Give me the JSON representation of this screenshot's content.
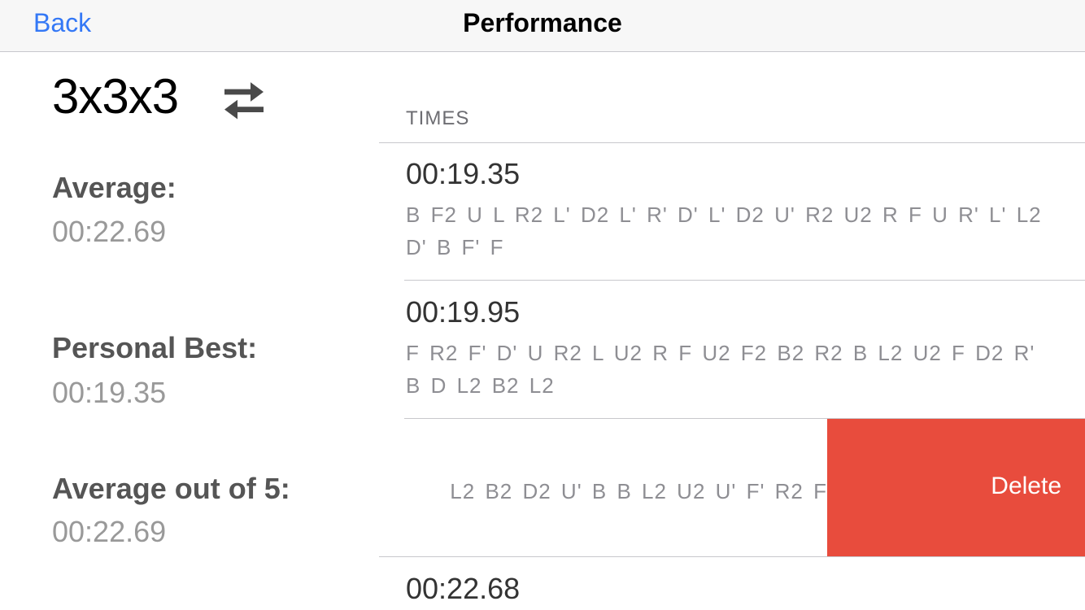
{
  "navbar": {
    "back_label": "Back",
    "title": "Performance"
  },
  "puzzle": {
    "name": "3x3x3",
    "switch_icon": "swap-arrows-icon"
  },
  "stats": [
    {
      "label": "Average:",
      "value": "00:22.69"
    },
    {
      "label": "Personal Best:",
      "value": "00:19.35"
    },
    {
      "label": "Average out of 5:",
      "value": "00:22.69"
    }
  ],
  "times": {
    "header": "TIMES",
    "rows": [
      {
        "time": "00:19.35",
        "scramble": "B F2 U L R2 L' D2 L' R' D' L' D2 U' R2 U2 R F U R' L' L2 D' B F' F"
      },
      {
        "time": "00:19.95",
        "scramble": "F R2 F' D' U R2 L U2 R F U2 F2 B2 R2 B L2 U2 F D2 R' B D L2 B2 L2"
      },
      {
        "time": "",
        "scramble": "L2 B2 D2 U' B B L2 U2 U' F' R2 F"
      },
      {
        "time": "00:22.68",
        "scramble": ""
      }
    ],
    "delete_label": "Delete"
  },
  "colors": {
    "accent": "#3478f6",
    "delete": "#e84c3d"
  }
}
